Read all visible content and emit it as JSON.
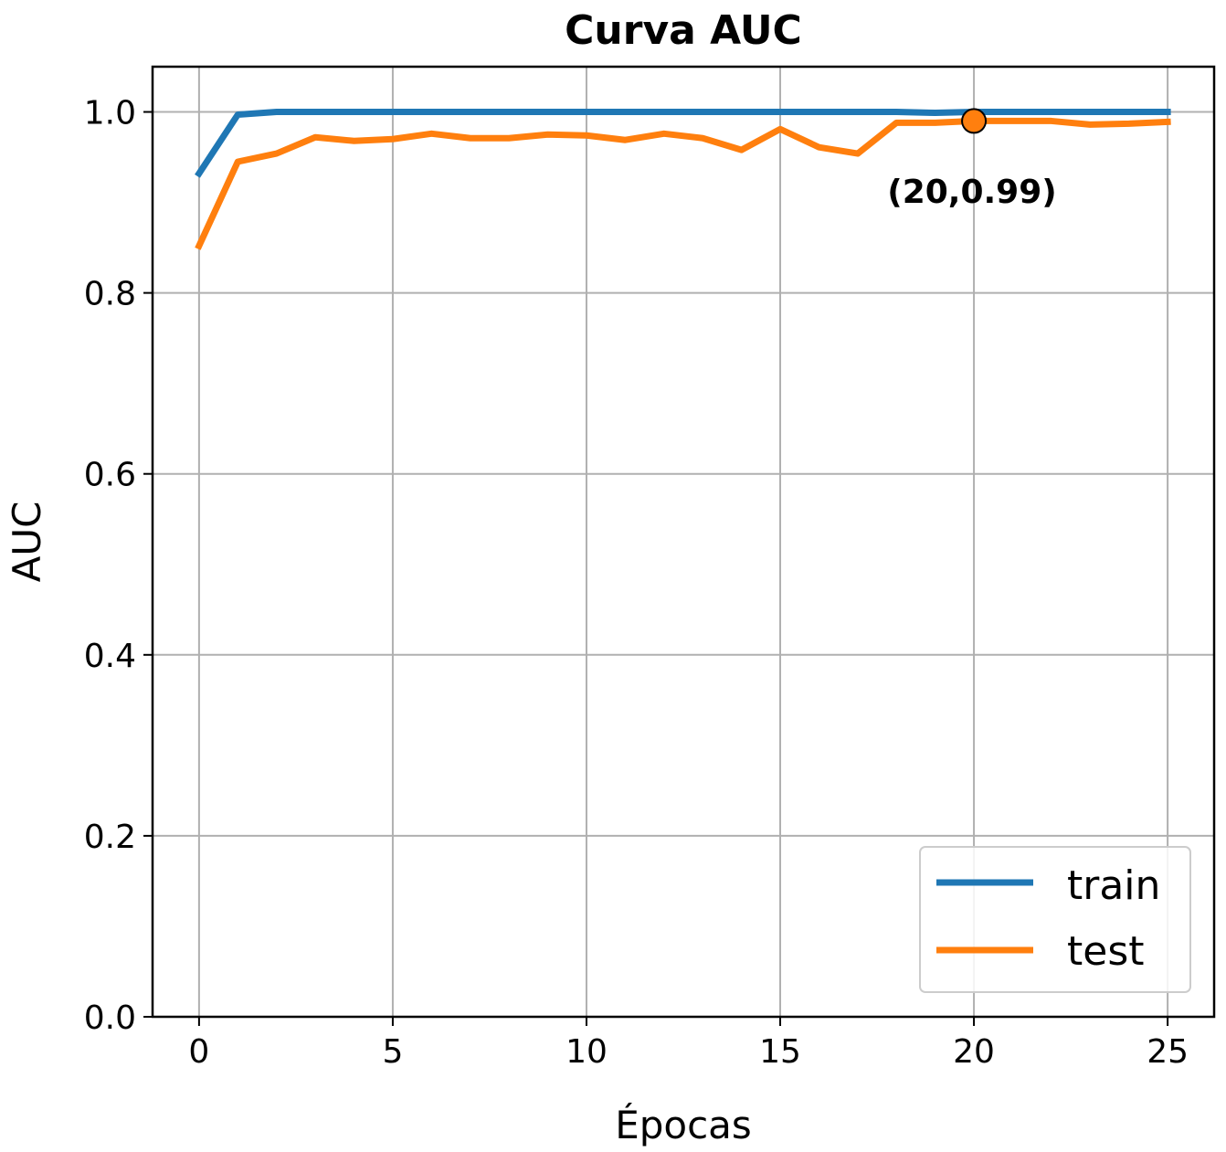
{
  "chart_data": {
    "type": "line",
    "title": "Curva AUC",
    "xlabel": "Épocas",
    "ylabel": "AUC",
    "xlim": [
      -1.2,
      26.2
    ],
    "ylim": [
      0.0,
      1.05
    ],
    "xticks": [
      0,
      5,
      10,
      15,
      20,
      25
    ],
    "yticks": [
      0.0,
      0.2,
      0.4,
      0.6,
      0.8,
      1.0
    ],
    "xtick_labels": [
      "0",
      "5",
      "10",
      "15",
      "20",
      "25"
    ],
    "ytick_labels": [
      "0.0",
      "0.2",
      "0.4",
      "0.6",
      "0.8",
      "1.0"
    ],
    "grid": true,
    "legend_position": "lower-right",
    "x": [
      0,
      1,
      2,
      3,
      4,
      5,
      6,
      7,
      8,
      9,
      10,
      11,
      12,
      13,
      14,
      15,
      16,
      17,
      18,
      19,
      20,
      21,
      22,
      23,
      24,
      25
    ],
    "series": [
      {
        "name": "train",
        "color": "#1f77b4",
        "values": [
          0.932,
          0.997,
          1.0,
          1.0,
          1.0,
          1.0,
          1.0,
          1.0,
          1.0,
          1.0,
          1.0,
          1.0,
          1.0,
          1.0,
          1.0,
          1.0,
          1.0,
          1.0,
          1.0,
          0.999,
          1.0,
          1.0,
          1.0,
          1.0,
          1.0,
          1.0
        ]
      },
      {
        "name": "test",
        "color": "#ff7f0e",
        "values": [
          0.852,
          0.945,
          0.954,
          0.972,
          0.968,
          0.97,
          0.976,
          0.971,
          0.971,
          0.975,
          0.974,
          0.969,
          0.976,
          0.971,
          0.958,
          0.981,
          0.961,
          0.954,
          0.988,
          0.988,
          0.99,
          0.99,
          0.99,
          0.986,
          0.987,
          0.989
        ]
      }
    ],
    "annotation": {
      "x": 20,
      "y": 0.99,
      "text": "(20,0.99)",
      "marker_color": "#ff7f0e"
    }
  }
}
